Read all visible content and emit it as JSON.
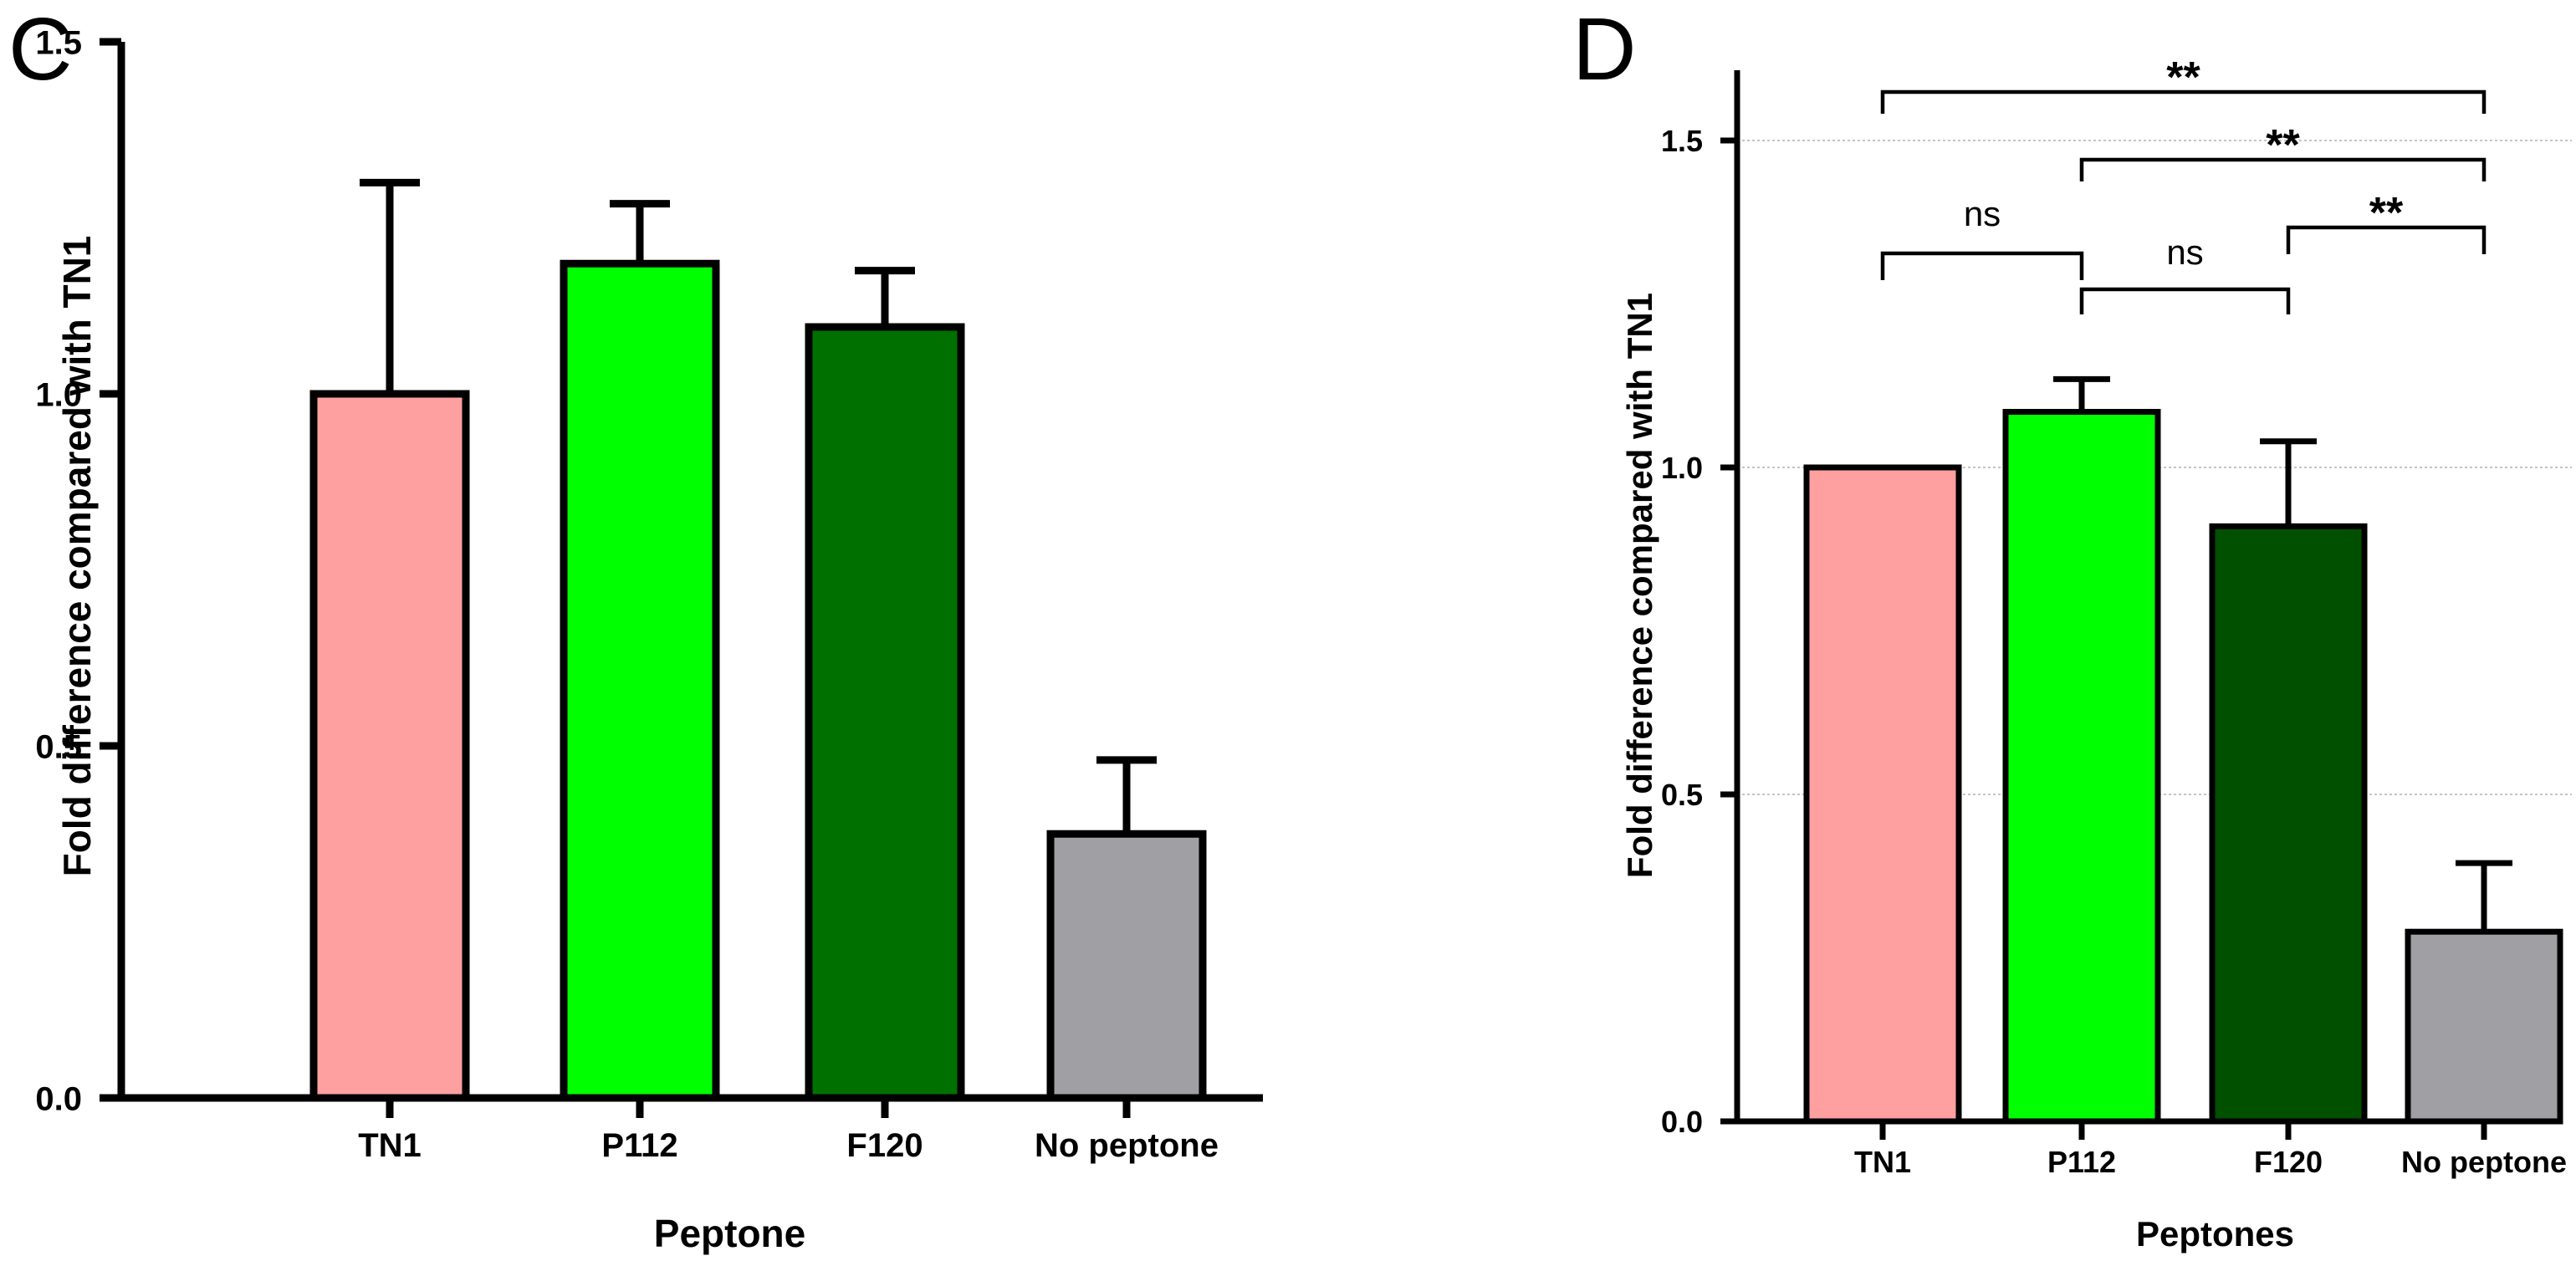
{
  "chart_data": [
    {
      "panel_label": "C",
      "type": "bar",
      "categories": [
        "TN1",
        "P112",
        "F120",
        "No peptone"
      ],
      "values": [
        1.0,
        1.185,
        1.095,
        0.375
      ],
      "errors": [
        0.3,
        0.085,
        0.08,
        0.105
      ],
      "colors": [
        "#FFA0A0",
        "#00FF00",
        "#007000",
        "#A0A0A4"
      ],
      "xlabel": "Peptone",
      "ylabel": "Fold difference compared with TN1",
      "ylim": [
        0,
        1.5
      ],
      "yticks": [
        0.0,
        0.5,
        1.0,
        1.5
      ],
      "ytick_labels": [
        "0.0",
        "0.5",
        "1.0",
        "1.5"
      ],
      "grid": false,
      "significance": []
    },
    {
      "panel_label": "D",
      "type": "bar",
      "categories": [
        "TN1",
        "P112",
        "F120",
        "No peptone"
      ],
      "values": [
        1.0,
        1.085,
        0.91,
        0.29
      ],
      "errors": [
        0.0,
        0.05,
        0.13,
        0.105
      ],
      "colors": [
        "#FFA0A0",
        "#00FF00",
        "#005000",
        "#A0A0A4"
      ],
      "xlabel": "Peptones",
      "ylabel": "Fold difference compared with TN1",
      "ylim": [
        0,
        1.6
      ],
      "yticks": [
        0.0,
        0.5,
        1.0,
        1.5
      ],
      "ytick_labels": [
        "0.0",
        "0.5",
        "1.0",
        "1.5"
      ],
      "grid": true,
      "significance": [
        {
          "from": 0,
          "to": 3,
          "label": "**"
        },
        {
          "from": 1,
          "to": 3,
          "label": "**"
        },
        {
          "from": 2,
          "to": 3,
          "label": "**"
        },
        {
          "from": 0,
          "to": 1,
          "label": "ns"
        },
        {
          "from": 1,
          "to": 2,
          "label": "ns"
        }
      ]
    }
  ]
}
